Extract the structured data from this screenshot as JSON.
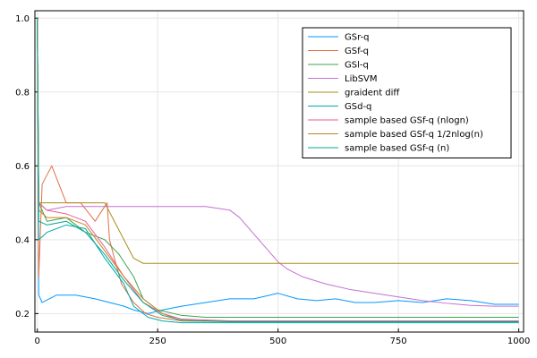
{
  "chart_data": {
    "type": "line",
    "title": "",
    "xlabel": "",
    "ylabel": "",
    "xlim": [
      -5,
      1010
    ],
    "ylim": [
      0.15,
      1.02
    ],
    "xticks": [
      0,
      250,
      500,
      750,
      1000
    ],
    "yticks": [
      0.2,
      0.4,
      0.6,
      0.8,
      1.0
    ],
    "xtick_labels": [
      "0",
      "250",
      "500",
      "750",
      "1000"
    ],
    "ytick_labels": [
      "0.2",
      "0.4",
      "0.6",
      "0.8",
      "1.0"
    ],
    "grid": true,
    "legend_position": "top-right",
    "series": [
      {
        "name": "GSr-q",
        "color": "#009AFA",
        "x": [
          0,
          3,
          10,
          40,
          80,
          120,
          150,
          180,
          200,
          230,
          260,
          300,
          350,
          400,
          450,
          500,
          540,
          580,
          620,
          660,
          700,
          750,
          800,
          850,
          900,
          950,
          1000
        ],
        "y": [
          1.0,
          0.25,
          0.23,
          0.25,
          0.25,
          0.24,
          0.23,
          0.22,
          0.21,
          0.2,
          0.21,
          0.22,
          0.23,
          0.24,
          0.24,
          0.255,
          0.24,
          0.235,
          0.24,
          0.23,
          0.23,
          0.235,
          0.23,
          0.24,
          0.235,
          0.225,
          0.225
        ]
      },
      {
        "name": "GSf-q",
        "color": "#E26F46",
        "x": [
          0,
          3,
          10,
          30,
          60,
          90,
          120,
          145,
          150,
          160,
          175,
          200,
          225,
          250,
          300,
          400,
          500,
          600,
          700,
          800,
          900,
          1000
        ],
        "y": [
          1.0,
          0.3,
          0.55,
          0.6,
          0.5,
          0.5,
          0.45,
          0.5,
          0.4,
          0.35,
          0.28,
          0.23,
          0.2,
          0.19,
          0.18,
          0.18,
          0.18,
          0.18,
          0.18,
          0.18,
          0.18,
          0.18
        ]
      },
      {
        "name": "GSl-q",
        "color": "#3DA44D",
        "x": [
          0,
          3,
          20,
          60,
          100,
          140,
          170,
          200,
          220,
          250,
          300,
          350,
          400,
          500,
          600,
          700,
          800,
          900,
          1000
        ],
        "y": [
          1.0,
          0.5,
          0.45,
          0.46,
          0.42,
          0.4,
          0.36,
          0.3,
          0.24,
          0.21,
          0.195,
          0.19,
          0.19,
          0.19,
          0.19,
          0.19,
          0.19,
          0.19,
          0.19
        ]
      },
      {
        "name": "LibSVM",
        "color": "#C271D2",
        "x": [
          0,
          3,
          20,
          60,
          100,
          150,
          200,
          250,
          300,
          350,
          400,
          420,
          440,
          460,
          480,
          500,
          520,
          550,
          600,
          650,
          700,
          750,
          800,
          850,
          900,
          950,
          1000
        ],
        "y": [
          1.0,
          0.5,
          0.48,
          0.49,
          0.49,
          0.49,
          0.49,
          0.49,
          0.49,
          0.49,
          0.48,
          0.46,
          0.43,
          0.4,
          0.37,
          0.34,
          0.32,
          0.3,
          0.28,
          0.265,
          0.255,
          0.245,
          0.235,
          0.228,
          0.222,
          0.22,
          0.22
        ]
      },
      {
        "name": "graident diff",
        "color": "#AC8D18",
        "x": [
          0,
          3,
          10,
          20,
          60,
          100,
          140,
          160,
          180,
          200,
          220,
          250,
          300,
          400,
          500,
          600,
          700,
          800,
          900,
          1000
        ],
        "y": [
          1.0,
          0.5,
          0.5,
          0.5,
          0.5,
          0.5,
          0.5,
          0.45,
          0.4,
          0.35,
          0.336,
          0.336,
          0.336,
          0.336,
          0.336,
          0.336,
          0.336,
          0.336,
          0.336,
          0.336
        ]
      },
      {
        "name": "GSd-q",
        "color": "#00A9AD",
        "x": [
          0,
          3,
          20,
          60,
          100,
          140,
          180,
          200,
          230,
          260,
          300,
          400,
          500,
          600,
          700,
          800,
          900,
          1000
        ],
        "y": [
          1.0,
          0.4,
          0.42,
          0.44,
          0.43,
          0.35,
          0.28,
          0.22,
          0.19,
          0.18,
          0.175,
          0.175,
          0.175,
          0.175,
          0.175,
          0.175,
          0.175,
          0.175
        ]
      },
      {
        "name": "sample based GSf-q (nlogn)",
        "color": "#ED5D92",
        "x": [
          0,
          3,
          20,
          60,
          100,
          140,
          180,
          220,
          260,
          300,
          400,
          500,
          600,
          700,
          800,
          900,
          1000
        ],
        "y": [
          1.0,
          0.5,
          0.48,
          0.47,
          0.45,
          0.38,
          0.3,
          0.23,
          0.2,
          0.185,
          0.18,
          0.18,
          0.18,
          0.18,
          0.18,
          0.18,
          0.18
        ]
      },
      {
        "name": "sample based GSf-q 1/2nlog(n)",
        "color": "#C68225",
        "x": [
          0,
          3,
          20,
          60,
          100,
          140,
          180,
          220,
          260,
          300,
          400,
          500,
          600,
          700,
          800,
          900,
          1000
        ],
        "y": [
          1.0,
          0.48,
          0.46,
          0.46,
          0.44,
          0.37,
          0.3,
          0.24,
          0.2,
          0.18,
          0.178,
          0.178,
          0.178,
          0.178,
          0.178,
          0.178,
          0.178
        ]
      },
      {
        "name": "sample based GSf-q (n)",
        "color": "#00A98D",
        "x": [
          0,
          3,
          20,
          60,
          100,
          140,
          180,
          220,
          260,
          300,
          400,
          500,
          600,
          700,
          800,
          900,
          1000
        ],
        "y": [
          1.0,
          0.45,
          0.44,
          0.45,
          0.42,
          0.36,
          0.29,
          0.23,
          0.195,
          0.182,
          0.178,
          0.178,
          0.178,
          0.178,
          0.178,
          0.178,
          0.178
        ]
      }
    ]
  }
}
